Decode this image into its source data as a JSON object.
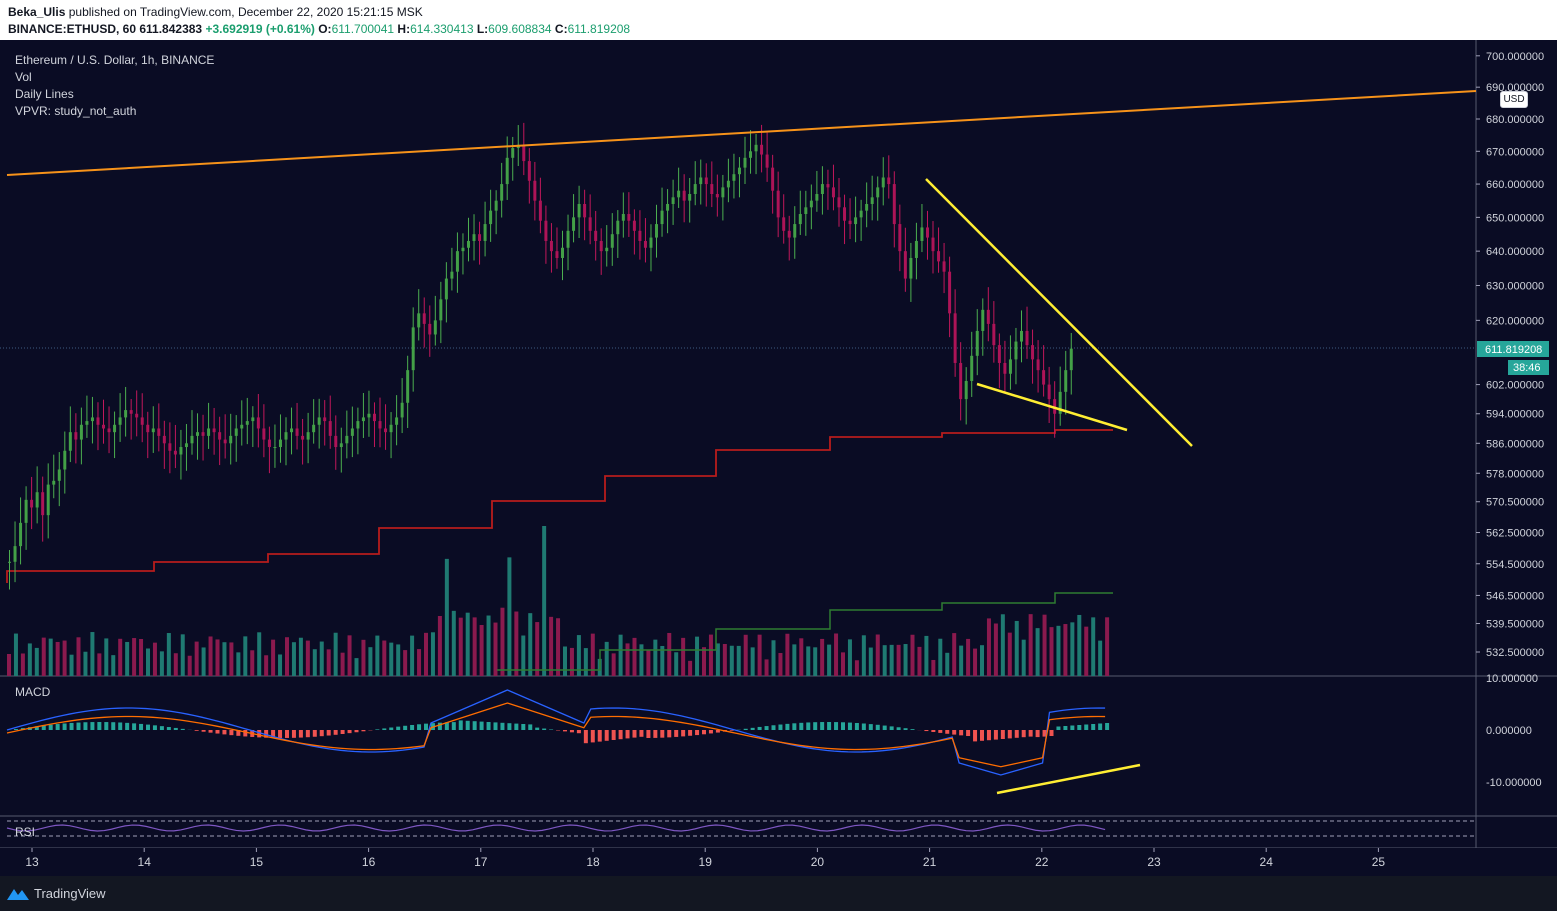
{
  "header": {
    "author": "Beka_Ulis",
    "published_text": "published on TradingView.com, December 22, 2020 15:21:15 MSK",
    "symbol": "BINANCE:ETHUSD, 60",
    "last": "611.842383",
    "change": "+3.692919 (+0.61%)",
    "o_label": "O:",
    "o_value": "611.700041",
    "h_label": "H:",
    "h_value": "614.330413",
    "l_label": "L:",
    "l_value": "609.608834",
    "c_label": "C:",
    "c_value": "611.819208"
  },
  "legend": {
    "title": "Ethereum / U.S. Dollar, 1h, BINANCE",
    "vol": "Vol",
    "daily_lines": "Daily Lines",
    "vpvr": "VPVR: study_not_auth"
  },
  "panes": {
    "macd_label": "MACD",
    "rsi_label": "RSI"
  },
  "footer": {
    "brand": "TradingView"
  },
  "colors": {
    "bg": "#0a0c24",
    "up": "#26a69a",
    "down": "#ef5350",
    "up_vol": "#1f7a72",
    "down_vol": "#8b1a4e",
    "trend_orange": "#f7931a",
    "wedge_yellow": "#ffee33",
    "daily_red": "#b71c1c",
    "daily_green": "#2e7d32",
    "macd_line": "#2962ff",
    "signal_line": "#ff6d00",
    "rsi_line": "#7e57c2",
    "price_badge": "#26a69a"
  },
  "chart_data": {
    "type": "candlestick",
    "symbol": "BINANCE:ETHUSD",
    "interval": "1h",
    "price_axis": {
      "unit": "USD",
      "tick_labels": [
        "700.000000",
        "690.000000",
        "680.000000",
        "670.000000",
        "660.000000",
        "650.000000",
        "640.000000",
        "630.000000",
        "620.000000",
        "611.819208",
        "602.000000",
        "594.000000",
        "586.000000",
        "578.000000",
        "570.500000",
        "562.500000",
        "554.500000",
        "546.500000",
        "539.500000",
        "532.500000"
      ],
      "scale": "logarithmic",
      "current_price": "611.819208",
      "countdown": "38:46"
    },
    "time_axis": {
      "tick_labels": [
        "13",
        "14",
        "15",
        "16",
        "17",
        "18",
        "19",
        "20",
        "21",
        "22",
        "23",
        "24",
        "25"
      ]
    },
    "macd_axis": {
      "tick_labels": [
        "10.000000",
        "0.000000",
        "-10.000000"
      ]
    },
    "price_series_close": [
      555,
      559,
      565,
      571,
      569,
      573,
      567,
      575,
      576,
      579,
      584,
      589,
      587,
      591,
      592,
      593,
      591,
      590,
      589,
      591,
      593,
      595,
      594,
      593,
      591,
      589,
      590,
      588,
      586,
      584,
      583,
      585,
      586,
      588,
      589,
      588,
      590,
      589,
      587,
      586,
      588,
      590,
      591,
      592,
      593,
      590,
      587,
      585,
      585,
      587,
      589,
      590,
      588,
      587,
      589,
      591,
      593,
      592,
      588,
      585,
      586,
      588,
      590,
      592,
      593,
      594,
      592,
      590,
      589,
      591,
      593,
      597,
      606,
      618,
      622,
      619,
      616,
      620,
      626,
      632,
      634,
      640,
      641,
      643,
      645,
      643,
      648,
      652,
      655,
      660,
      668,
      671,
      672,
      667,
      661,
      655,
      649,
      643,
      640,
      638,
      641,
      646,
      650,
      654,
      650,
      646,
      643,
      640,
      641,
      645,
      649,
      651,
      649,
      646,
      643,
      641,
      644,
      648,
      652,
      654,
      656,
      658,
      655,
      657,
      660,
      662,
      660,
      657,
      656,
      659,
      661,
      663,
      665,
      668,
      670,
      672,
      669,
      665,
      658,
      650,
      646,
      644,
      648,
      651,
      653,
      655,
      657,
      660,
      659,
      656,
      653,
      649,
      648,
      650,
      652,
      654,
      656,
      659,
      662,
      660,
      648,
      640,
      632,
      638,
      643,
      647,
      644,
      640,
      637,
      634,
      622,
      608,
      598,
      603,
      610,
      617,
      623,
      619,
      613,
      608,
      605,
      609,
      614,
      617,
      613,
      609,
      606,
      602,
      598,
      594,
      600,
      606,
      612
    ]
  }
}
